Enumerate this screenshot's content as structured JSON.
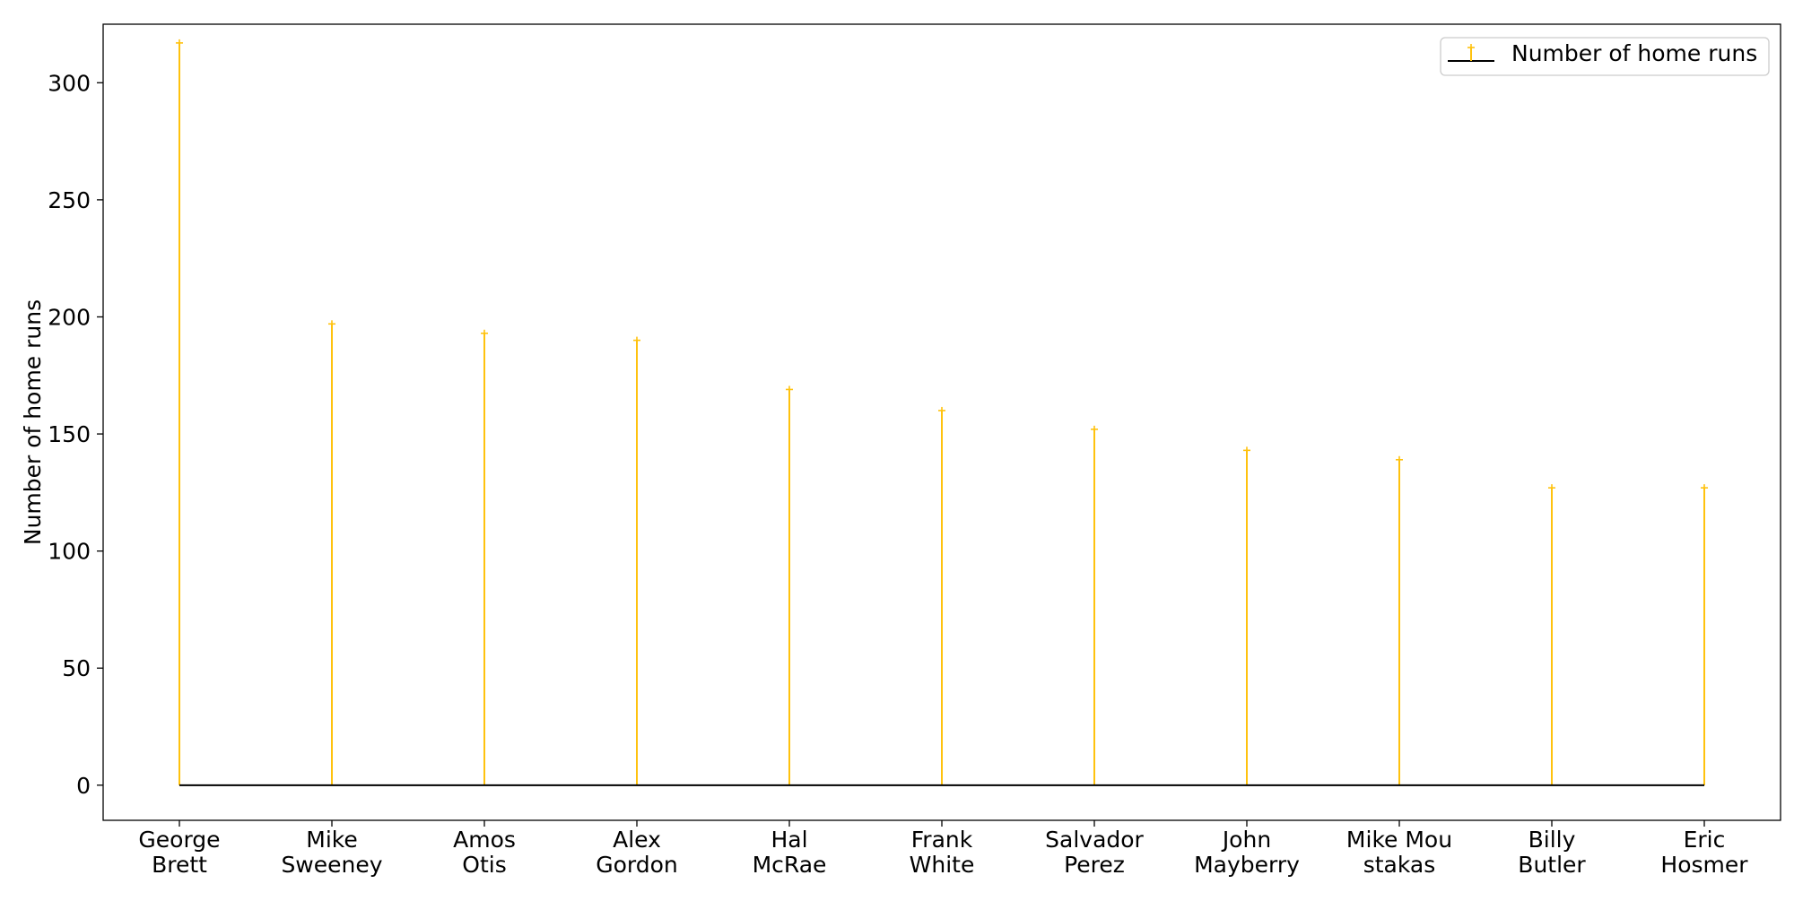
{
  "chart_data": {
    "type": "stem",
    "title": "",
    "xlabel": "",
    "ylabel": "Number of home runs",
    "ylim": [
      -15,
      325
    ],
    "yticks": [
      0,
      50,
      100,
      150,
      200,
      250,
      300
    ],
    "yticklabels": [
      "0",
      "50",
      "100",
      "150",
      "200",
      "250",
      "300"
    ],
    "categories": [
      [
        "George",
        "Brett"
      ],
      [
        "Mike",
        "Sweeney"
      ],
      [
        "Amos",
        "Otis"
      ],
      [
        "Alex",
        "Gordon"
      ],
      [
        "Hal",
        "McRae"
      ],
      [
        "Frank",
        "White"
      ],
      [
        "Salvador",
        "Perez"
      ],
      [
        "John",
        "Mayberry"
      ],
      [
        "Mike Mou",
        "stakas"
      ],
      [
        "Billy",
        "Butler"
      ],
      [
        "Eric",
        "Hosmer"
      ]
    ],
    "series": [
      {
        "name": "Number of home runs",
        "values": [
          317,
          197,
          193,
          190,
          169,
          160,
          152,
          143,
          139,
          127,
          127
        ],
        "color": "#ffc20e",
        "marker": "+",
        "baseline_color": "#000000"
      }
    ],
    "legend": {
      "position": "top-right",
      "label": "Number of home runs"
    },
    "grid": false
  }
}
